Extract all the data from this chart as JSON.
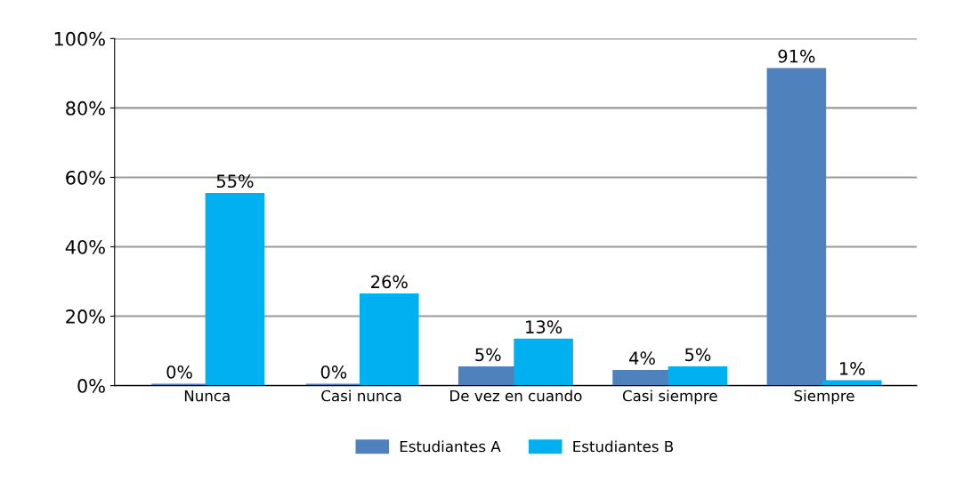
{
  "chart_data": {
    "type": "bar",
    "categories": [
      "Nunca",
      "Casi nunca",
      "De vez en cuando",
      "Casi siempre",
      "Siempre"
    ],
    "series": [
      {
        "name": "Estudiantes A",
        "color": "#4f81bd",
        "values": [
          0,
          0,
          5,
          4,
          91
        ],
        "value_labels": [
          "0%",
          "0%",
          "5%",
          "4%",
          "91%"
        ]
      },
      {
        "name": "Estudiantes B",
        "color": "#00b0f0",
        "values": [
          55,
          26,
          13,
          5,
          1
        ],
        "value_labels": [
          "55%",
          "26%",
          "13%",
          "5%",
          "1%"
        ]
      }
    ],
    "ylim": [
      0,
      100
    ],
    "yticks": [
      {
        "value": 0,
        "label": "0%"
      },
      {
        "value": 20,
        "label": "20%"
      },
      {
        "value": 40,
        "label": "40%"
      },
      {
        "value": 60,
        "label": "60%"
      },
      {
        "value": 80,
        "label": "80%"
      },
      {
        "value": 100,
        "label": "100%"
      }
    ],
    "grid": "y",
    "legend": "bottom"
  }
}
